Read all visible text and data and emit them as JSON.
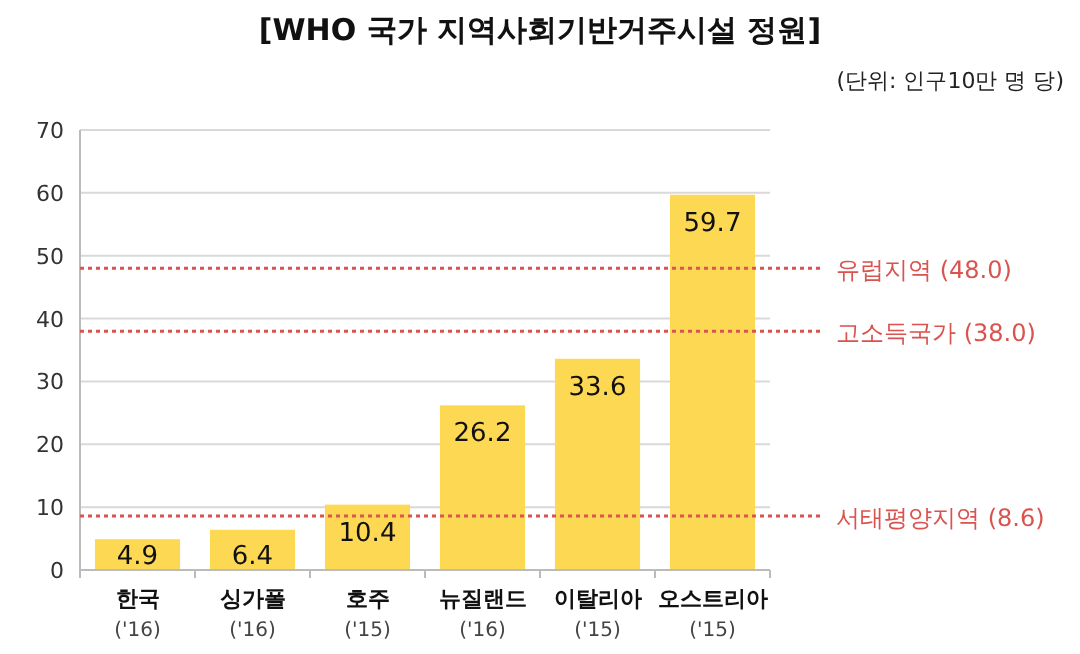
{
  "chart_data": {
    "type": "bar",
    "title": "[WHO 국가 지역사회기반거주시설 정원]",
    "subtitle": "(단위: 인구10만 명 당)",
    "categories": [
      "한국\n('16)",
      "싱가폴\n('16)",
      "호주\n('15)",
      "뉴질랜드\n('16)",
      "이탈리아\n('15)",
      "오스트리아\n('15)"
    ],
    "values": [
      4.9,
      6.4,
      10.4,
      26.2,
      33.6,
      59.7
    ],
    "color": "#fdd853",
    "data_labels": true,
    "ylim": [
      0,
      70
    ],
    "yticks": [
      0,
      10,
      20,
      30,
      40,
      50,
      60,
      70
    ],
    "grid": "y",
    "ref_lines": [
      {
        "axis": "y",
        "value": 48.0,
        "label": "유럽지역 (48.0)",
        "color": "#d9534f",
        "line_style": "dotted"
      },
      {
        "axis": "y",
        "value": 38.0,
        "label": "고소득국가 (38.0)",
        "color": "#d9534f",
        "line_style": "dotted"
      },
      {
        "axis": "y",
        "value": 8.6,
        "label": "서태평양지역 (8.6)",
        "color": "#d9534f",
        "line_style": "dotted"
      }
    ]
  }
}
